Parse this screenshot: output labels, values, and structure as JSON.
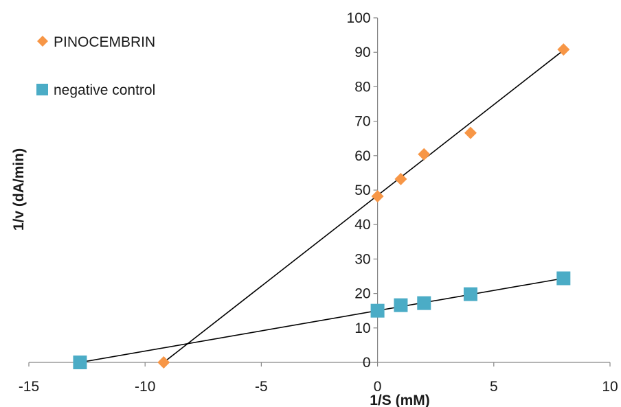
{
  "chart_data": {
    "type": "scatter",
    "xlabel": "1/S (mM)",
    "ylabel": "1/v (dA/min)",
    "xlim": [
      -15,
      10
    ],
    "ylim": [
      0,
      100
    ],
    "x_ticks": [
      -15,
      -10,
      -5,
      0,
      5,
      10
    ],
    "y_ticks": [
      0,
      10,
      20,
      30,
      40,
      50,
      60,
      70,
      80,
      90,
      100
    ],
    "x_tick_labels": [
      "-15",
      "-10",
      "-5",
      "0",
      "5",
      "10"
    ],
    "y_tick_labels": [
      "0",
      "10",
      "20",
      "30",
      "40",
      "50",
      "60",
      "70",
      "80",
      "90",
      "100"
    ],
    "grid": false,
    "legend_position": "top-left",
    "series": [
      {
        "name": "PINOCEMBRIN",
        "marker": "diamond",
        "color": "#f79646",
        "points": [
          {
            "x": -9.2,
            "y": 0
          },
          {
            "x": 0,
            "y": 48.2
          },
          {
            "x": 1,
            "y": 53.2
          },
          {
            "x": 2,
            "y": 60.4
          },
          {
            "x": 4,
            "y": 66.6
          },
          {
            "x": 8,
            "y": 90.8
          }
        ],
        "trendline": {
          "x": [
            -9.2,
            8
          ],
          "y": [
            0,
            90.6
          ]
        }
      },
      {
        "name": "negative control",
        "marker": "square",
        "color": "#4bacc6",
        "points": [
          {
            "x": -12.8,
            "y": 0
          },
          {
            "x": 0,
            "y": 15
          },
          {
            "x": 1,
            "y": 16.6
          },
          {
            "x": 2,
            "y": 17.2
          },
          {
            "x": 4,
            "y": 19.8
          },
          {
            "x": 8,
            "y": 24.4
          }
        ],
        "trendline": {
          "x": [
            -12.8,
            8
          ],
          "y": [
            0,
            24.4
          ]
        }
      }
    ]
  }
}
